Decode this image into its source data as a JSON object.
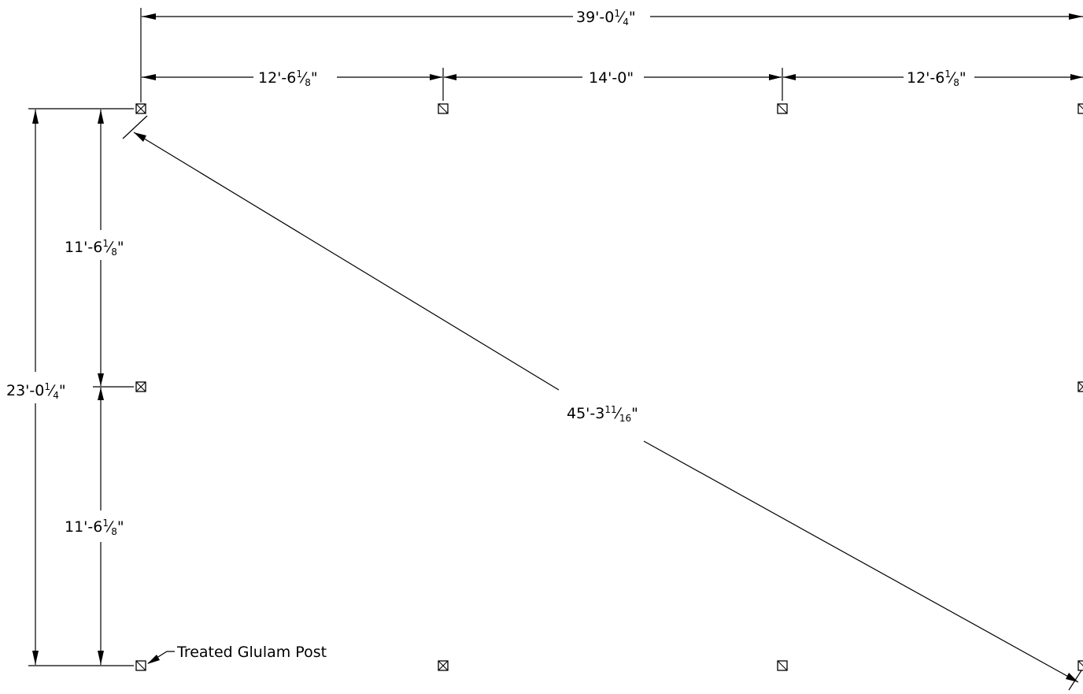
{
  "dimensions": {
    "overall_width": {
      "whole": "39'-0",
      "num": "1",
      "den": "4",
      "tail": "\""
    },
    "bay_left": {
      "whole": "12'-6",
      "num": "1",
      "den": "8",
      "tail": "\""
    },
    "bay_middle": {
      "whole": "14'-0\""
    },
    "bay_right": {
      "whole": "12'-6",
      "num": "1",
      "den": "8",
      "tail": "\""
    },
    "side_upper": {
      "whole": "11'-6",
      "num": "1",
      "den": "8",
      "tail": "\""
    },
    "side_lower": {
      "whole": "11'-6",
      "num": "1",
      "den": "8",
      "tail": "\""
    },
    "overall_depth": {
      "whole": "23'-0",
      "num": "1",
      "den": "4",
      "tail": "\""
    },
    "diagonal": {
      "whole": "45'-3",
      "num": "11",
      "den": "16",
      "tail": "\""
    }
  },
  "callout": {
    "label": "Treated Glulam Post"
  },
  "colors": {
    "line": "#000000",
    "background": "#ffffff"
  }
}
